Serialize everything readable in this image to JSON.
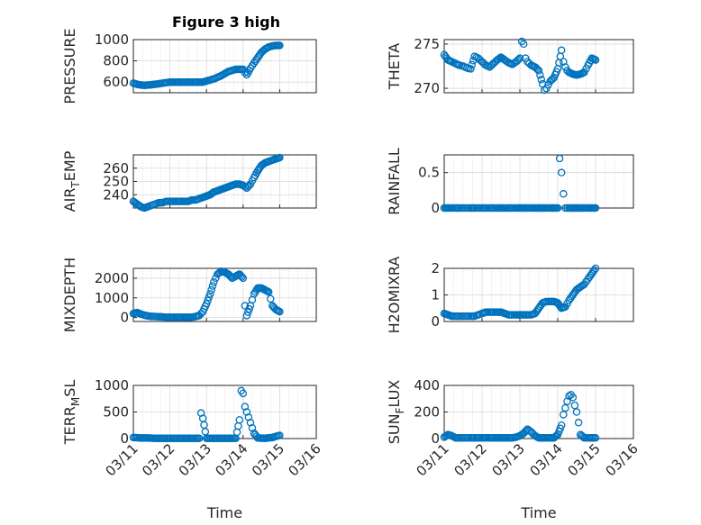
{
  "figure": {
    "title": "Figure 3 high",
    "marker_color": "#0072bd",
    "x_ticks": [
      "03/11",
      "03/12",
      "03/13",
      "03/14",
      "03/15",
      "03/16"
    ]
  },
  "chart_data": [
    {
      "type": "scatter",
      "panel": "top-left",
      "title": "Figure 3 high",
      "xlabel": "",
      "ylabel": "PRESSURE",
      "xlim": [
        "03/11",
        "03/15"
      ],
      "ylim": [
        500,
        1000
      ],
      "yticks": [
        "600",
        "800",
        "1000"
      ],
      "ytick_values": [
        600,
        800,
        1000
      ],
      "series": [
        {
          "x": [
            0,
            0.15,
            0.3,
            0.5,
            0.7,
            0.9,
            1.0,
            1.1,
            1.3,
            1.5,
            1.7,
            1.9,
            2.0,
            2.2,
            2.4,
            2.6,
            2.8,
            3.0,
            3.05,
            3.1,
            3.2,
            3.3,
            3.4,
            3.5,
            3.6,
            3.7,
            3.8,
            3.9,
            4.0
          ],
          "y": [
            590,
            575,
            570,
            575,
            585,
            595,
            600,
            600,
            600,
            600,
            600,
            600,
            610,
            630,
            660,
            700,
            720,
            720,
            690,
            670,
            730,
            780,
            830,
            880,
            910,
            930,
            940,
            945,
            945
          ]
        }
      ]
    },
    {
      "type": "scatter",
      "panel": "top-right",
      "xlabel": "",
      "ylabel": "THETA",
      "xlim": [
        "03/11",
        "03/15"
      ],
      "ylim": [
        269.5,
        275.5
      ],
      "yticks": [
        "270",
        "275"
      ],
      "ytick_values": [
        270,
        275
      ],
      "series": [
        {
          "x": [
            0,
            0.1,
            0.2,
            0.3,
            0.4,
            0.5,
            0.6,
            0.7,
            0.8,
            0.9,
            1.0,
            1.1,
            1.2,
            1.3,
            1.4,
            1.5,
            1.6,
            1.7,
            1.8,
            1.9,
            2.0,
            2.05,
            2.1,
            2.15,
            2.2,
            2.3,
            2.4,
            2.5,
            2.6,
            2.65,
            2.7,
            2.75,
            2.8,
            2.9,
            3.0,
            3.1,
            3.15,
            3.2,
            3.25,
            3.3,
            3.4,
            3.5,
            3.6,
            3.7,
            3.8,
            3.9,
            4.0
          ],
          "y": [
            273.8,
            273.2,
            273.0,
            272.8,
            272.6,
            272.5,
            272.3,
            272.2,
            273.6,
            273.4,
            273.0,
            272.6,
            272.4,
            272.8,
            273.2,
            273.5,
            273.2,
            272.9,
            272.7,
            273.0,
            273.4,
            275.3,
            275.0,
            273.4,
            273.0,
            272.6,
            272.4,
            272.0,
            270.5,
            269.8,
            270.0,
            270.4,
            270.8,
            271.2,
            272.2,
            274.3,
            273.0,
            272.4,
            272.0,
            271.8,
            271.6,
            271.5,
            271.6,
            271.8,
            272.6,
            273.4,
            273.2
          ]
        }
      ]
    },
    {
      "type": "scatter",
      "panel": "second-left",
      "xlabel": "",
      "ylabel": "AIR_TEMP",
      "ylabel_main": "AIR",
      "ylabel_sub": "T",
      "ylabel_rest": "EMP",
      "xlim": [
        "03/11",
        "03/15"
      ],
      "ylim": [
        230,
        270
      ],
      "yticks": [
        "240",
        "250",
        "260"
      ],
      "ytick_values": [
        240,
        250,
        260
      ],
      "series": [
        {
          "x": [
            0,
            0.1,
            0.2,
            0.3,
            0.4,
            0.5,
            0.6,
            0.7,
            0.8,
            0.9,
            1.0,
            1.1,
            1.2,
            1.3,
            1.4,
            1.5,
            1.6,
            1.7,
            1.8,
            1.9,
            2.0,
            2.1,
            2.2,
            2.3,
            2.4,
            2.5,
            2.6,
            2.7,
            2.8,
            2.9,
            3.0,
            3.05,
            3.1,
            3.2,
            3.3,
            3.4,
            3.5,
            3.6,
            3.7,
            3.8,
            3.9,
            4.0
          ],
          "y": [
            235,
            233,
            231,
            230,
            231,
            232,
            233,
            234,
            234,
            235,
            235,
            235,
            235,
            235,
            235,
            235,
            236,
            236,
            237,
            238,
            239,
            240,
            242,
            243,
            244,
            245,
            246,
            247,
            248,
            248,
            247,
            246,
            245,
            248,
            253,
            258,
            262,
            264,
            265,
            266,
            267,
            268
          ]
        }
      ]
    },
    {
      "type": "scatter",
      "panel": "second-right",
      "xlabel": "",
      "ylabel": "RAINFALL",
      "xlim": [
        "03/11",
        "03/15"
      ],
      "ylim": [
        0,
        0.75
      ],
      "yticks": [
        "0",
        "0.5"
      ],
      "ytick_values": [
        0,
        0.5
      ],
      "series": [
        {
          "x": [
            0,
            0.1,
            0.2,
            0.3,
            0.4,
            0.5,
            0.6,
            0.7,
            0.8,
            0.9,
            1.0,
            1.1,
            1.2,
            1.3,
            1.4,
            1.5,
            1.6,
            1.7,
            1.8,
            1.9,
            2.0,
            2.1,
            2.2,
            2.3,
            2.4,
            2.5,
            2.6,
            2.7,
            2.8,
            2.9,
            3.0,
            3.05,
            3.1,
            3.15,
            3.2,
            3.3,
            3.4,
            3.5,
            3.6,
            3.7,
            3.8,
            3.9,
            4.0
          ],
          "y": [
            0,
            0,
            0,
            0,
            0,
            0,
            0,
            0,
            0,
            0,
            0,
            0,
            0,
            0,
            0,
            0,
            0,
            0,
            0,
            0,
            0,
            0,
            0,
            0,
            0,
            0,
            0,
            0,
            0,
            0,
            0,
            0.7,
            0.5,
            0.2,
            0,
            0,
            0,
            0,
            0,
            0,
            0,
            0,
            0
          ]
        }
      ]
    },
    {
      "type": "scatter",
      "panel": "third-left",
      "xlabel": "",
      "ylabel": "MIXDEPTH",
      "xlim": [
        "03/11",
        "03/15"
      ],
      "ylim": [
        -200,
        2500
      ],
      "yticks": [
        "0",
        "1000",
        "2000"
      ],
      "ytick_values": [
        0,
        1000,
        2000
      ],
      "series": [
        {
          "x": [
            0,
            0.1,
            0.2,
            0.3,
            0.4,
            0.5,
            0.6,
            0.7,
            0.8,
            0.9,
            1.0,
            1.1,
            1.2,
            1.3,
            1.4,
            1.5,
            1.6,
            1.7,
            1.8,
            1.9,
            2.0,
            2.1,
            2.2,
            2.3,
            2.4,
            2.5,
            2.6,
            2.7,
            2.8,
            2.9,
            3.0,
            3.05,
            3.1,
            3.2,
            3.3,
            3.4,
            3.5,
            3.6,
            3.7,
            3.8,
            3.9,
            4.0
          ],
          "y": [
            200,
            250,
            180,
            120,
            80,
            60,
            50,
            40,
            30,
            20,
            20,
            20,
            20,
            20,
            20,
            20,
            20,
            50,
            100,
            300,
            700,
            1200,
            1800,
            2200,
            2350,
            2300,
            2200,
            2000,
            2100,
            2200,
            2000,
            600,
            100,
            600,
            1200,
            1500,
            1500,
            1400,
            1300,
            600,
            400,
            300
          ]
        }
      ]
    },
    {
      "type": "scatter",
      "panel": "third-right",
      "xlabel": "",
      "ylabel": "H2OMIXRA",
      "xlim": [
        "03/11",
        "03/15"
      ],
      "ylim": [
        0,
        2
      ],
      "yticks": [
        "0",
        "1",
        "2"
      ],
      "ytick_values": [
        0,
        1,
        2
      ],
      "series": [
        {
          "x": [
            0,
            0.1,
            0.2,
            0.3,
            0.4,
            0.5,
            0.6,
            0.7,
            0.8,
            0.9,
            1.0,
            1.1,
            1.2,
            1.3,
            1.4,
            1.5,
            1.6,
            1.7,
            1.8,
            1.9,
            2.0,
            2.1,
            2.2,
            2.3,
            2.4,
            2.5,
            2.6,
            2.7,
            2.8,
            2.9,
            3.0,
            3.1,
            3.2,
            3.3,
            3.4,
            3.5,
            3.6,
            3.7,
            3.8,
            3.9,
            4.0
          ],
          "y": [
            0.3,
            0.25,
            0.2,
            0.2,
            0.2,
            0.2,
            0.2,
            0.2,
            0.2,
            0.25,
            0.3,
            0.35,
            0.35,
            0.35,
            0.35,
            0.35,
            0.3,
            0.25,
            0.25,
            0.25,
            0.25,
            0.25,
            0.25,
            0.25,
            0.3,
            0.5,
            0.7,
            0.75,
            0.75,
            0.75,
            0.7,
            0.5,
            0.55,
            0.8,
            1.0,
            1.2,
            1.3,
            1.4,
            1.6,
            1.8,
            2.0
          ]
        }
      ]
    },
    {
      "type": "scatter",
      "panel": "bottom-left",
      "xlabel": "Time",
      "ylabel": "TERR_MSL",
      "ylabel_main": "TERR",
      "ylabel_sub": "M",
      "ylabel_rest": "SL",
      "xlim": [
        "03/11",
        "03/16"
      ],
      "ylim": [
        0,
        1000
      ],
      "yticks": [
        "0",
        "500",
        "1000"
      ],
      "ytick_values": [
        0,
        500,
        1000
      ],
      "series": [
        {
          "x": [
            0,
            0.2,
            0.4,
            0.6,
            0.8,
            1.0,
            1.2,
            1.4,
            1.6,
            1.8,
            1.85,
            1.9,
            2.0,
            2.2,
            2.4,
            2.6,
            2.8,
            2.9,
            2.95,
            3.0,
            3.05,
            3.1,
            3.15,
            3.2,
            3.25,
            3.3,
            3.4,
            3.6,
            3.8,
            4.0
          ],
          "y": [
            20,
            10,
            10,
            5,
            5,
            5,
            5,
            5,
            5,
            5,
            480,
            380,
            5,
            5,
            5,
            5,
            5,
            350,
            900,
            850,
            600,
            500,
            400,
            300,
            200,
            100,
            10,
            5,
            20,
            60
          ]
        }
      ]
    },
    {
      "type": "scatter",
      "panel": "bottom-right",
      "xlabel": "Time",
      "ylabel": "SUN_FLUX",
      "ylabel_main": "SUN",
      "ylabel_sub": "F",
      "ylabel_rest": "LUX",
      "xlim": [
        "03/11",
        "03/16"
      ],
      "ylim": [
        0,
        400
      ],
      "yticks": [
        "0",
        "200",
        "400"
      ],
      "ytick_values": [
        0,
        200,
        400
      ],
      "series": [
        {
          "x": [
            0,
            0.1,
            0.2,
            0.3,
            0.4,
            0.5,
            0.6,
            0.7,
            0.8,
            0.9,
            1.0,
            1.1,
            1.2,
            1.3,
            1.4,
            1.5,
            1.6,
            1.7,
            1.8,
            1.9,
            2.0,
            2.1,
            2.2,
            2.3,
            2.4,
            2.5,
            2.6,
            2.7,
            2.8,
            2.9,
            3.0,
            3.1,
            3.15,
            3.2,
            3.25,
            3.3,
            3.35,
            3.4,
            3.45,
            3.5,
            3.55,
            3.6,
            3.7,
            3.8,
            4.0
          ],
          "y": [
            10,
            30,
            20,
            5,
            5,
            5,
            5,
            5,
            5,
            5,
            5,
            5,
            5,
            5,
            5,
            5,
            5,
            5,
            5,
            10,
            20,
            40,
            70,
            50,
            20,
            5,
            5,
            5,
            5,
            5,
            30,
            100,
            180,
            230,
            280,
            320,
            330,
            310,
            250,
            200,
            120,
            30,
            5,
            5,
            5
          ]
        }
      ]
    }
  ]
}
